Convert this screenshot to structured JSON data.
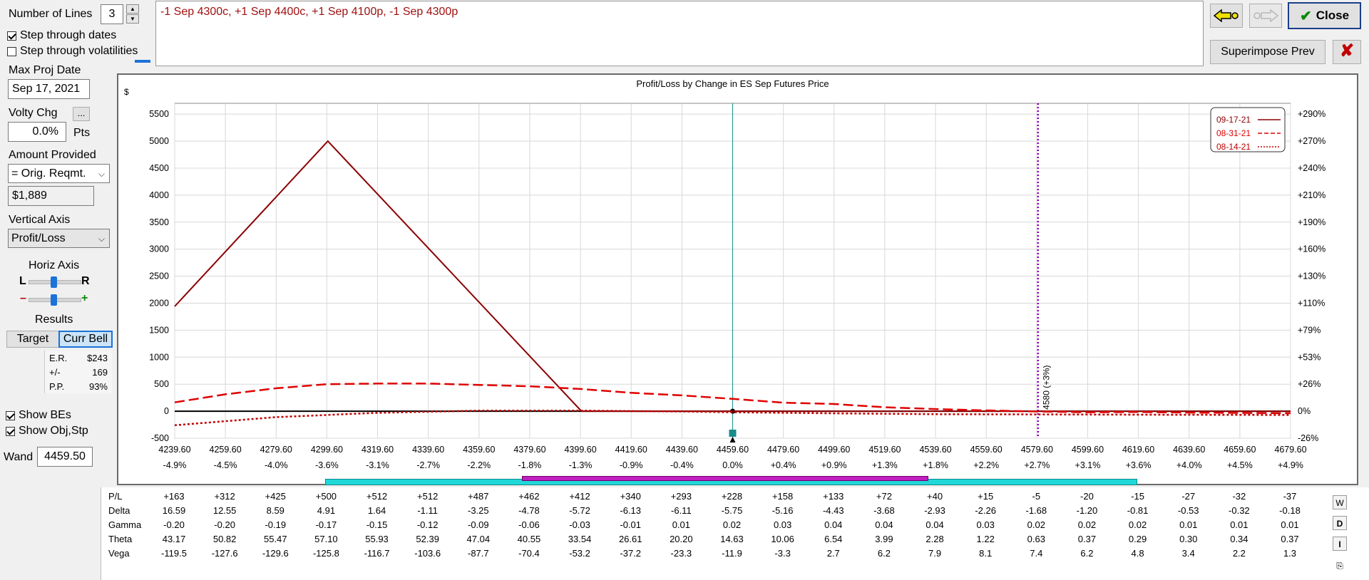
{
  "left_panel": {
    "num_lines_label": "Number of Lines",
    "num_lines_value": "3",
    "step_dates_label": "Step through dates",
    "step_dates_checked": true,
    "step_vol_label": "Step through volatilities",
    "step_vol_checked": false,
    "max_proj_date_label": "Max Proj Date",
    "max_proj_date_value": "Sep 17, 2021",
    "volty_chg_label": "Volty Chg",
    "volty_chg_button": "...",
    "volty_chg_value": "0.0%",
    "volty_chg_unit": "Pts",
    "amount_provided_label": "Amount Provided",
    "amount_provided_value": "= Orig. Reqmt.",
    "amount_value": "$1,889",
    "vertical_axis_label": "Vertical Axis",
    "vertical_axis_value": "Profit/Loss",
    "horiz_axis_label": "Horiz Axis",
    "slider_left": "L",
    "slider_right": "R",
    "slider_minus": "–",
    "slider_plus": "+",
    "results_label": "Results",
    "target_button": "Target",
    "curr_bell_button": "Curr Bell",
    "results": {
      "er_label": "E.R.",
      "er_value": "$243",
      "pm_label": "+/-",
      "pm_value": "169",
      "pp_label": "P.P.",
      "pp_value": "93%"
    },
    "show_bes_label": "Show BEs",
    "show_bes_checked": true,
    "show_objstp_label": "Show Obj,Stp",
    "show_objstp_checked": true,
    "wand_label": "Wand",
    "wand_value": "4459.50"
  },
  "strategy_text": "-1 Sep 4300c, +1 Sep 4400c, +1 Sep 4100p, -1 Sep 4300p",
  "top_right": {
    "superimpose_label": "Superimpose Prev",
    "close_label": "Close"
  },
  "chart_data": {
    "type": "line",
    "title": "Profit/Loss by Change in ES Sep Futures Price",
    "y_unit": "$",
    "x_ticks": [
      "4239.60",
      "4259.60",
      "4279.60",
      "4299.60",
      "4319.60",
      "4339.60",
      "4359.60",
      "4379.60",
      "4399.60",
      "4419.60",
      "4439.60",
      "4459.60",
      "4479.60",
      "4499.60",
      "4519.60",
      "4539.60",
      "4559.60",
      "4579.60",
      "4599.60",
      "4619.60",
      "4639.60",
      "4659.60",
      "4679.60"
    ],
    "x_pct_ticks": [
      "-4.9%",
      "-4.5%",
      "-4.0%",
      "-3.6%",
      "-3.1%",
      "-2.7%",
      "-2.2%",
      "-1.8%",
      "-1.3%",
      "-0.9%",
      "-0.4%",
      "0.0%",
      "+0.4%",
      "+0.9%",
      "+1.3%",
      "+1.8%",
      "+2.2%",
      "+2.7%",
      "+3.1%",
      "+3.6%",
      "+4.0%",
      "+4.5%",
      "+4.9%"
    ],
    "y_ticks": [
      "5500",
      "5000",
      "4500",
      "4000",
      "3500",
      "3000",
      "2500",
      "2000",
      "1500",
      "1000",
      "500",
      "0",
      "-500"
    ],
    "y_right_ticks": [
      "+290%",
      "+270%",
      "+240%",
      "+210%",
      "+190%",
      "+160%",
      "+130%",
      "+110%",
      "+79%",
      "+53%",
      "+26%",
      "0%",
      "-26%"
    ],
    "xlim": [
      4239.6,
      4679.6
    ],
    "ylim": [
      -500,
      5700
    ],
    "legend": [
      "09-17-21",
      "08-31-21",
      "08-14-21"
    ],
    "legend_position": "top-right",
    "marker_label": "4580 (+3%)",
    "marker_x": 4580,
    "current_price": 4459.6,
    "series": [
      {
        "name": "09-17-21",
        "style": "solid",
        "color": "#8b0000",
        "x": [
          4239.6,
          4300,
          4400,
          4679.6
        ],
        "y": [
          1940,
          5000,
          0,
          0
        ]
      },
      {
        "name": "08-31-21",
        "style": "dashed",
        "color": "#e00000",
        "x": [
          4239.6,
          4259.6,
          4279.6,
          4299.6,
          4319.6,
          4339.6,
          4359.6,
          4379.6,
          4399.6,
          4419.6,
          4439.6,
          4459.6,
          4479.6,
          4499.6,
          4519.6,
          4539.6,
          4559.6,
          4579.6,
          4599.6,
          4619.6,
          4639.6,
          4659.6,
          4679.6
        ],
        "y": [
          163,
          312,
          425,
          500,
          512,
          512,
          487,
          462,
          412,
          340,
          293,
          228,
          158,
          133,
          72,
          40,
          15,
          -5,
          -20,
          -15,
          -27,
          -32,
          -37
        ]
      },
      {
        "name": "08-14-21",
        "style": "dotted",
        "color": "#c00000",
        "x": [
          4239.6,
          4279.6,
          4319.6,
          4359.6,
          4399.6,
          4439.6,
          4459.6,
          4499.6,
          4539.6,
          4579.6,
          4619.6,
          4679.6
        ],
        "y": [
          -260,
          -110,
          -30,
          10,
          10,
          -5,
          -20,
          -40,
          -55,
          -60,
          -65,
          -70
        ]
      }
    ]
  },
  "greeks": {
    "rows": [
      {
        "label": "P/L",
        "values": [
          "+163",
          "+312",
          "+425",
          "+500",
          "+512",
          "+512",
          "+487",
          "+462",
          "+412",
          "+340",
          "+293",
          "+228",
          "+158",
          "+133",
          "+72",
          "+40",
          "+15",
          "-5",
          "-20",
          "-15",
          "-27",
          "-32",
          "-37"
        ]
      },
      {
        "label": "Delta",
        "values": [
          "16.59",
          "12.55",
          "8.59",
          "4.91",
          "1.64",
          "-1.11",
          "-3.25",
          "-4.78",
          "-5.72",
          "-6.13",
          "-6.11",
          "-5.75",
          "-5.16",
          "-4.43",
          "-3.68",
          "-2.93",
          "-2.26",
          "-1.68",
          "-1.20",
          "-0.81",
          "-0.53",
          "-0.32",
          "-0.18"
        ]
      },
      {
        "label": "Gamma",
        "values": [
          "-0.20",
          "-0.20",
          "-0.19",
          "-0.17",
          "-0.15",
          "-0.12",
          "-0.09",
          "-0.06",
          "-0.03",
          "-0.01",
          "0.01",
          "0.02",
          "0.03",
          "0.04",
          "0.04",
          "0.04",
          "0.03",
          "0.02",
          "0.02",
          "0.02",
          "0.01",
          "0.01",
          "0.01"
        ]
      },
      {
        "label": "Theta",
        "values": [
          "43.17",
          "50.82",
          "55.47",
          "57.10",
          "55.93",
          "52.39",
          "47.04",
          "40.55",
          "33.54",
          "26.61",
          "20.20",
          "14.63",
          "10.06",
          "6.54",
          "3.99",
          "2.28",
          "1.22",
          "0.63",
          "0.37",
          "0.29",
          "0.30",
          "0.34",
          "0.37"
        ]
      },
      {
        "label": "Vega",
        "values": [
          "-119.5",
          "-127.6",
          "-129.6",
          "-125.8",
          "-116.7",
          "-103.6",
          "-87.7",
          "-70.4",
          "-53.2",
          "-37.2",
          "-23.3",
          "-11.9",
          "-3.3",
          "2.7",
          "6.2",
          "7.9",
          "8.1",
          "7.4",
          "6.2",
          "4.8",
          "3.4",
          "2.2",
          "1.3"
        ]
      }
    ],
    "tool_d": "D",
    "tool_i": "I"
  }
}
